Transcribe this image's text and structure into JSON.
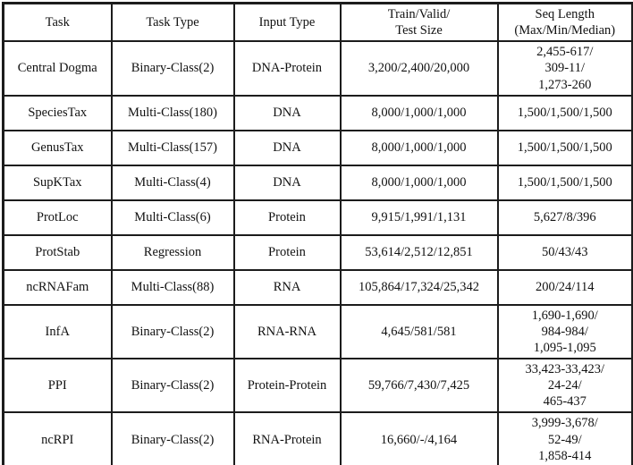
{
  "table": {
    "columns": [
      {
        "label": "Task"
      },
      {
        "label": "Task Type"
      },
      {
        "label": "Input Type"
      },
      {
        "label": "Train/Valid/\nTest Size"
      },
      {
        "label": "Seq Length\n(Max/Min/Median)"
      }
    ],
    "rows": [
      {
        "cells": [
          "Central Dogma",
          "Binary-Class(2)",
          "DNA-Protein",
          "3,200/2,400/20,000",
          "2,455-617/\n309-11/\n1,273-260"
        ]
      },
      {
        "cells": [
          "SpeciesTax",
          "Multi-Class(180)",
          "DNA",
          "8,000/1,000/1,000",
          "1,500/1,500/1,500"
        ]
      },
      {
        "cells": [
          "GenusTax",
          "Multi-Class(157)",
          "DNA",
          "8,000/1,000/1,000",
          "1,500/1,500/1,500"
        ]
      },
      {
        "cells": [
          "SupKTax",
          "Multi-Class(4)",
          "DNA",
          "8,000/1,000/1,000",
          "1,500/1,500/1,500"
        ]
      },
      {
        "cells": [
          "ProtLoc",
          "Multi-Class(6)",
          "Protein",
          "9,915/1,991/1,131",
          "5,627/8/396"
        ]
      },
      {
        "cells": [
          "ProtStab",
          "Regression",
          "Protein",
          "53,614/2,512/12,851",
          "50/43/43"
        ]
      },
      {
        "cells": [
          "ncRNAFam",
          "Multi-Class(88)",
          "RNA",
          "105,864/17,324/25,342",
          "200/24/114"
        ]
      },
      {
        "cells": [
          "InfA",
          "Binary-Class(2)",
          "RNA-RNA",
          "4,645/581/581",
          "1,690-1,690/\n984-984/\n1,095-1,095"
        ]
      },
      {
        "cells": [
          "PPI",
          "Binary-Class(2)",
          "Protein-Protein",
          "59,766/7,430/7,425",
          "33,423-33,423/\n24-24/\n465-437"
        ]
      },
      {
        "cells": [
          "ncRPI",
          "Binary-Class(2)",
          "RNA-Protein",
          "16,660/-/4,164",
          "3,999-3,678/\n52-49/\n1,858-414"
        ]
      }
    ]
  }
}
